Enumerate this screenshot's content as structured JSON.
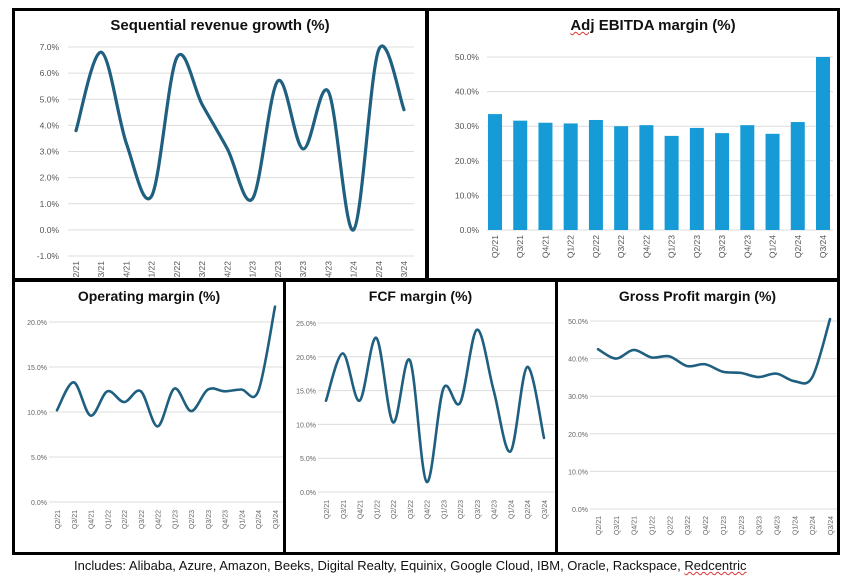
{
  "caption": {
    "prefix": "Includes: Alibaba, Azure, Amazon, Beeks, Digital Realty, Equinix, Google Cloud, IBM, Oracle, Rackspace, ",
    "last": "Redcentric"
  },
  "colors": {
    "line": "#1f5f80",
    "bar": "#169bd7",
    "grid": "#dcdcdc"
  },
  "chart_data": [
    {
      "id": "seq",
      "type": "line",
      "title": "Sequential revenue growth (%)",
      "categories": [
        "Q2/21",
        "Q3/21",
        "Q4/21",
        "Q1/22",
        "Q2/22",
        "Q3/22",
        "Q4/22",
        "Q1/23",
        "Q2/23",
        "Q3/23",
        "Q4/23",
        "Q1/24",
        "Q2/24",
        "Q3/24"
      ],
      "values": [
        3.8,
        6.8,
        3.3,
        1.3,
        6.6,
        4.8,
        3.1,
        1.2,
        5.7,
        3.1,
        5.3,
        0.0,
        6.9,
        4.6
      ],
      "ylim": [
        -1,
        7
      ],
      "yticks": [
        -1,
        0,
        1,
        2,
        3,
        4,
        5,
        6,
        7
      ],
      "ytick_labels": [
        "-1.0%",
        "0.0%",
        "1.0%",
        "2.0%",
        "3.0%",
        "4.0%",
        "5.0%",
        "6.0%",
        "7.0%"
      ],
      "grid": true,
      "xlabel": "",
      "ylabel": ""
    },
    {
      "id": "ebitda",
      "type": "bar",
      "title_underlined": "Adj",
      "title": "EBITDA margin (%)",
      "categories": [
        "Q2/21",
        "Q3/21",
        "Q4/21",
        "Q1/22",
        "Q2/22",
        "Q3/22",
        "Q4/22",
        "Q1/23",
        "Q2/23",
        "Q3/23",
        "Q4/23",
        "Q1/24",
        "Q2/24",
        "Q3/24"
      ],
      "values": [
        33.5,
        31.6,
        31.0,
        30.8,
        31.8,
        30.0,
        30.3,
        27.2,
        29.5,
        28.0,
        30.3,
        27.8,
        31.2,
        50.0
      ],
      "ylim": [
        0,
        50
      ],
      "yticks": [
        0,
        10,
        20,
        30,
        40,
        50
      ],
      "ytick_labels": [
        "0.0%",
        "10.0%",
        "20.0%",
        "30.0%",
        "40.0%",
        "50.0%"
      ],
      "grid": true,
      "xlabel": "",
      "ylabel": ""
    },
    {
      "id": "opm",
      "type": "line",
      "title": "Operating margin (%)",
      "categories": [
        "Q2/21",
        "Q3/21",
        "Q4/21",
        "Q1/22",
        "Q2/22",
        "Q3/22",
        "Q4/22",
        "Q1/23",
        "Q2/23",
        "Q3/23",
        "Q4/23",
        "Q1/24",
        "Q2/24",
        "Q3/24"
      ],
      "values": [
        10.2,
        13.3,
        9.6,
        12.3,
        11.1,
        12.3,
        8.4,
        12.6,
        10.1,
        12.5,
        12.3,
        12.5,
        12.3,
        21.7
      ],
      "ylim": [
        0,
        22
      ],
      "yticks": [
        0,
        5,
        10,
        15,
        20
      ],
      "ytick_labels": [
        "0.0%",
        "5.0%",
        "10.0%",
        "15.0%",
        "20.0%"
      ],
      "grid": true,
      "xlabel": "",
      "ylabel": ""
    },
    {
      "id": "fcf",
      "type": "line",
      "title": "FCF margin (%)",
      "categories": [
        "Q2/21",
        "Q3/21",
        "Q4/21",
        "Q1/22",
        "Q2/22",
        "Q3/22",
        "Q4/22",
        "Q1/23",
        "Q2/23",
        "Q3/23",
        "Q4/23",
        "Q1/24",
        "Q2/24",
        "Q3/24"
      ],
      "values": [
        13.5,
        20.5,
        13.5,
        22.8,
        10.3,
        19.5,
        1.5,
        15.3,
        13.2,
        24.0,
        15.0,
        6.0,
        18.5,
        8.0
      ],
      "ylim": [
        0,
        25
      ],
      "yticks": [
        0,
        5,
        10,
        15,
        20,
        25
      ],
      "ytick_labels": [
        "0.0%",
        "5.0%",
        "10.0%",
        "15.0%",
        "20.0%",
        "25.0%"
      ],
      "grid": true,
      "xlabel": "",
      "ylabel": ""
    },
    {
      "id": "gpm",
      "type": "line",
      "title": "Gross Profit margin (%)",
      "categories": [
        "Q2/21",
        "Q3/21",
        "Q4/21",
        "Q1/22",
        "Q2/22",
        "Q3/22",
        "Q4/22",
        "Q1/23",
        "Q2/23",
        "Q3/23",
        "Q4/23",
        "Q1/24",
        "Q2/24",
        "Q3/24"
      ],
      "values": [
        42.5,
        40.0,
        42.3,
        40.3,
        40.6,
        38.0,
        38.5,
        36.5,
        36.2,
        35.1,
        36.0,
        34.0,
        35.0,
        50.5
      ],
      "ylim": [
        0,
        50
      ],
      "yticks": [
        0,
        10,
        20,
        30,
        40,
        50
      ],
      "ytick_labels": [
        "0.0%",
        "10.0%",
        "20.0%",
        "30.0%",
        "40.0%",
        "50.0%"
      ],
      "grid": true,
      "xlabel": "",
      "ylabel": ""
    }
  ]
}
